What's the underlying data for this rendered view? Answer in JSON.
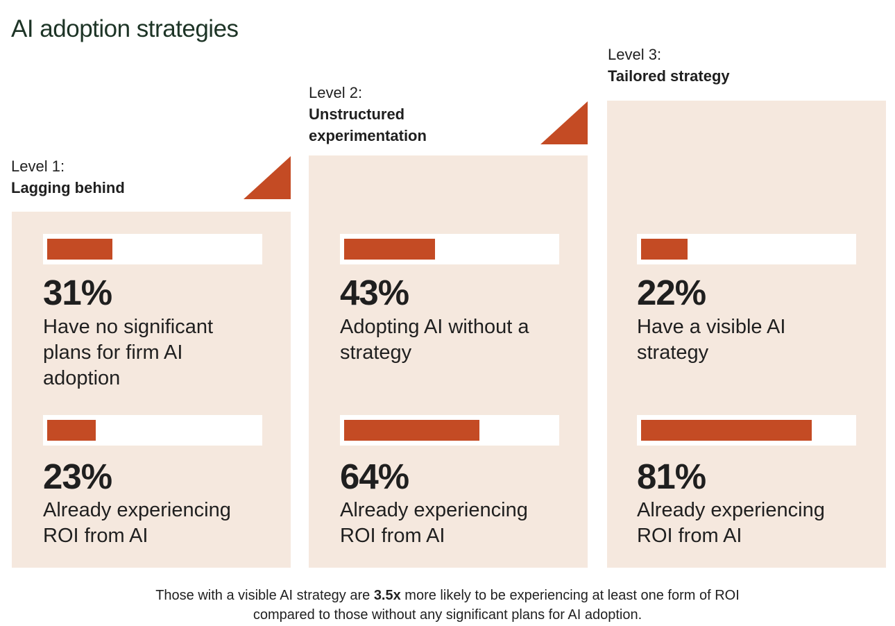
{
  "title": "AI adoption strategies",
  "colors": {
    "accent": "#c44b24",
    "panel": "#f5e8de",
    "title": "#1d3426"
  },
  "chart_data": {
    "type": "bar",
    "title": "AI adoption strategies",
    "categories": [
      "Lagging behind",
      "Unstructured experimentation",
      "Tailored strategy"
    ],
    "series": [
      {
        "values": [
          31,
          43,
          22
        ]
      },
      {
        "values": [
          23,
          64,
          81
        ]
      }
    ],
    "ylim": [
      0,
      100
    ]
  },
  "levels": [
    {
      "level_label": "Level 1:",
      "name": "Lagging behind",
      "stats": [
        {
          "value": 31,
          "value_label": "31%",
          "description": "Have no significant plans for firm AI adoption"
        },
        {
          "value": 23,
          "value_label": "23%",
          "description": "Already experiencing ROI from AI"
        }
      ]
    },
    {
      "level_label": "Level 2:",
      "name": "Unstructured experimentation",
      "stats": [
        {
          "value": 43,
          "value_label": "43%",
          "description": "Adopting AI without a strategy"
        },
        {
          "value": 64,
          "value_label": "64%",
          "description": "Already experiencing ROI from AI"
        }
      ]
    },
    {
      "level_label": "Level 3:",
      "name": "Tailored strategy",
      "stats": [
        {
          "value": 22,
          "value_label": "22%",
          "description": "Have a visible AI strategy"
        },
        {
          "value": 81,
          "value_label": "81%",
          "description": "Already experiencing ROI from AI"
        }
      ]
    }
  ],
  "footnote": {
    "pre": "Those with a visible AI strategy are ",
    "bold": "3.5x",
    "post": " more likely to be experiencing at least one form of ROI",
    "line2": "compared to those without any significant plans for AI adoption."
  }
}
